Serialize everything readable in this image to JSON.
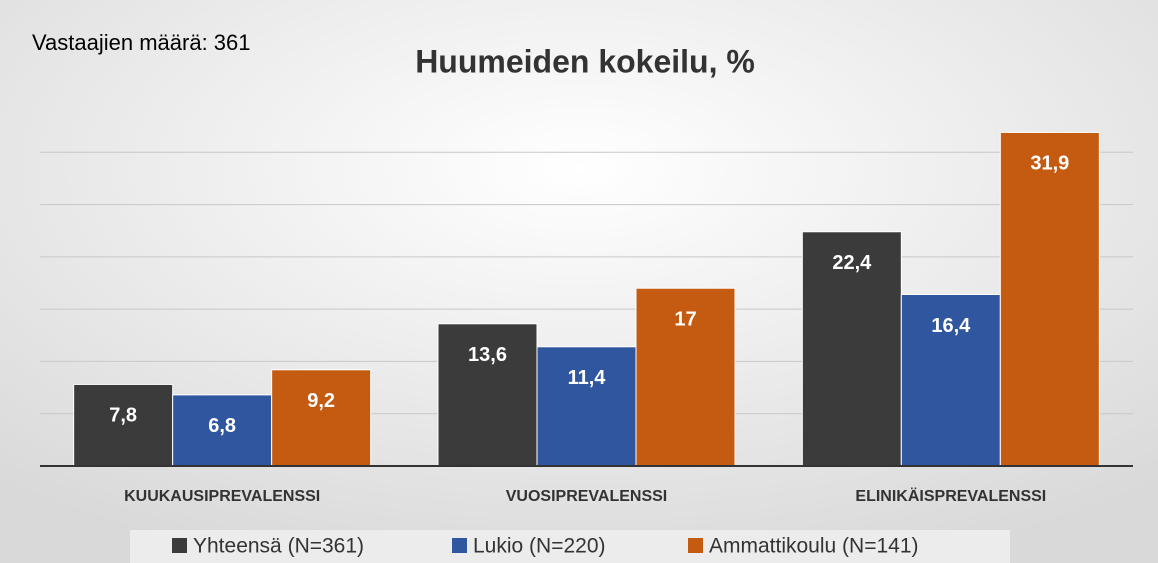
{
  "chart_data": {
    "type": "bar",
    "title": "Huumeiden kokeilu, %",
    "annotation": "Vastaajien määrä: 361",
    "categories": [
      "KUUKAUSIPREVALENSSI",
      "VUOSIPREVALENSSI",
      "ELINIKÄISPREVALENSSI"
    ],
    "series": [
      {
        "name": "Yhteensä (N=361)",
        "color": "#3b3b3b",
        "values": [
          7.8,
          13.6,
          22.4
        ],
        "value_labels": [
          "7,8",
          "13,6",
          "22,4"
        ]
      },
      {
        "name": "Lukio (N=220)",
        "color": "#2f569e",
        "values": [
          6.8,
          11.4,
          16.4
        ],
        "value_labels": [
          "6,8",
          "11,4",
          "16,4"
        ]
      },
      {
        "name": "Ammattikoulu (N=141)",
        "color": "#c55a11",
        "values": [
          9.2,
          17,
          31.9
        ],
        "value_labels": [
          "9,2",
          "17",
          "31,9"
        ]
      }
    ],
    "ylim": [
      0,
      35
    ],
    "yticks": [
      0,
      5,
      10,
      15,
      20,
      25,
      30
    ],
    "grid": true,
    "legend": "bottom"
  }
}
